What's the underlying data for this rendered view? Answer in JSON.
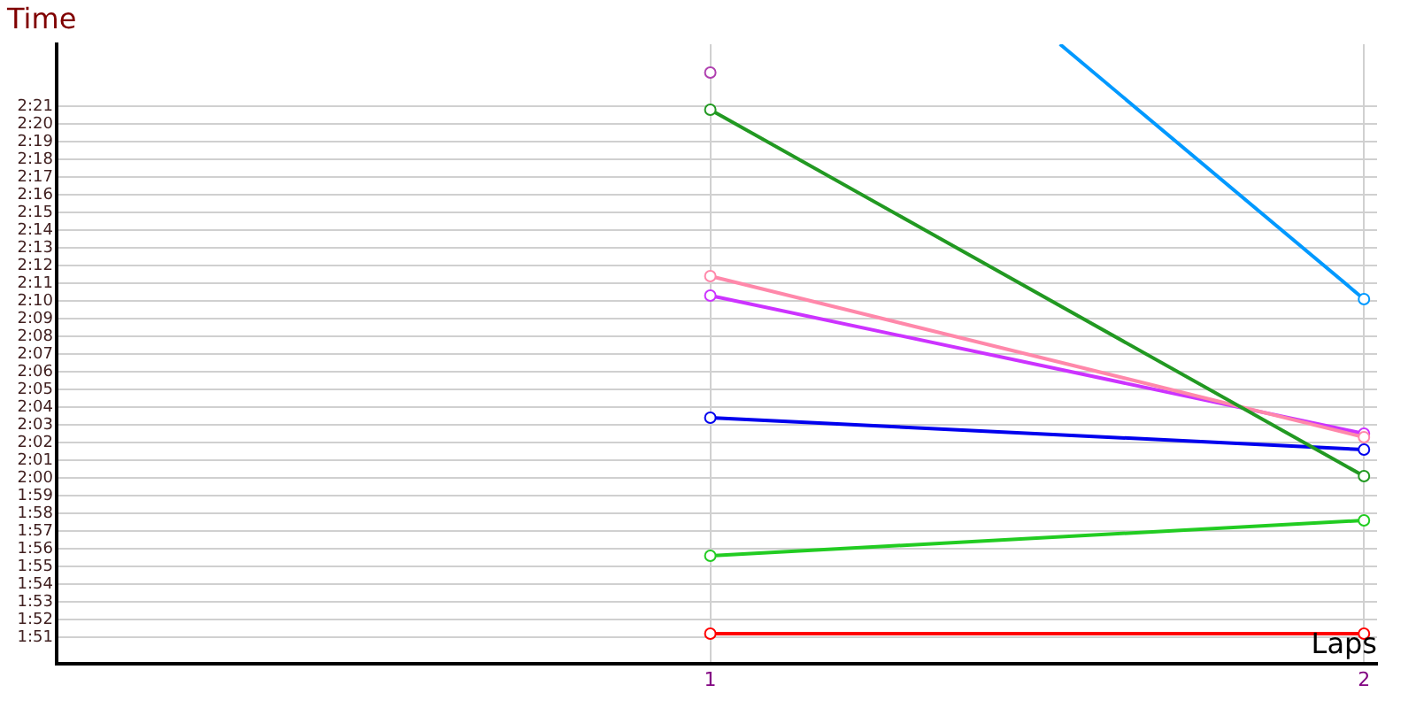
{
  "chart_data": {
    "type": "line",
    "xlabel": "Laps",
    "ylabel": "Time",
    "x": [
      1,
      2
    ],
    "xlim": [
      0,
      2.02
    ],
    "xticks": [
      1,
      2
    ],
    "ylim": [
      109.5,
      144.5
    ],
    "yticks": [
      {
        "value": 111,
        "label": "1:51"
      },
      {
        "value": 112,
        "label": "1:52"
      },
      {
        "value": 113,
        "label": "1:53"
      },
      {
        "value": 114,
        "label": "1:54"
      },
      {
        "value": 115,
        "label": "1:55"
      },
      {
        "value": 116,
        "label": "1:56"
      },
      {
        "value": 117,
        "label": "1:57"
      },
      {
        "value": 118,
        "label": "1:58"
      },
      {
        "value": 119,
        "label": "1:59"
      },
      {
        "value": 120,
        "label": "2:00"
      },
      {
        "value": 121,
        "label": "2:01"
      },
      {
        "value": 122,
        "label": "2:02"
      },
      {
        "value": 123,
        "label": "2:03"
      },
      {
        "value": 124,
        "label": "2:04"
      },
      {
        "value": 125,
        "label": "2:05"
      },
      {
        "value": 126,
        "label": "2:06"
      },
      {
        "value": 127,
        "label": "2:07"
      },
      {
        "value": 128,
        "label": "2:08"
      },
      {
        "value": 129,
        "label": "2:09"
      },
      {
        "value": 130,
        "label": "2:10"
      },
      {
        "value": 131,
        "label": "2:11"
      },
      {
        "value": 132,
        "label": "2:12"
      },
      {
        "value": 133,
        "label": "2:13"
      },
      {
        "value": 134,
        "label": "2:14"
      },
      {
        "value": 135,
        "label": "2:15"
      },
      {
        "value": 136,
        "label": "2:16"
      },
      {
        "value": 137,
        "label": "2:17"
      },
      {
        "value": 138,
        "label": "2:18"
      },
      {
        "value": 139,
        "label": "2:19"
      },
      {
        "value": 140,
        "label": "2:20"
      },
      {
        "value": 141,
        "label": "2:21"
      }
    ],
    "grid": true,
    "legend": false,
    "marker": "circle",
    "line_style": "solid",
    "series": [
      {
        "color": "#b040b0",
        "values": [
          142.9,
          null
        ]
      },
      {
        "color": "#229922",
        "values": [
          140.8,
          120.1
        ]
      },
      {
        "color": "#0099ff",
        "x": [
          1.535,
          2
        ],
        "values": [
          144.5,
          130.1
        ]
      },
      {
        "color": "#ff88aa",
        "values": [
          131.4,
          122.3
        ]
      },
      {
        "color": "#cc33ff",
        "values": [
          130.3,
          122.5
        ]
      },
      {
        "color": "#0000ee",
        "values": [
          123.4,
          121.6
        ]
      },
      {
        "color": "#22cc22",
        "values": [
          115.6,
          117.6
        ]
      },
      {
        "color": "#ff0000",
        "values": [
          111.2,
          111.2
        ]
      }
    ]
  }
}
